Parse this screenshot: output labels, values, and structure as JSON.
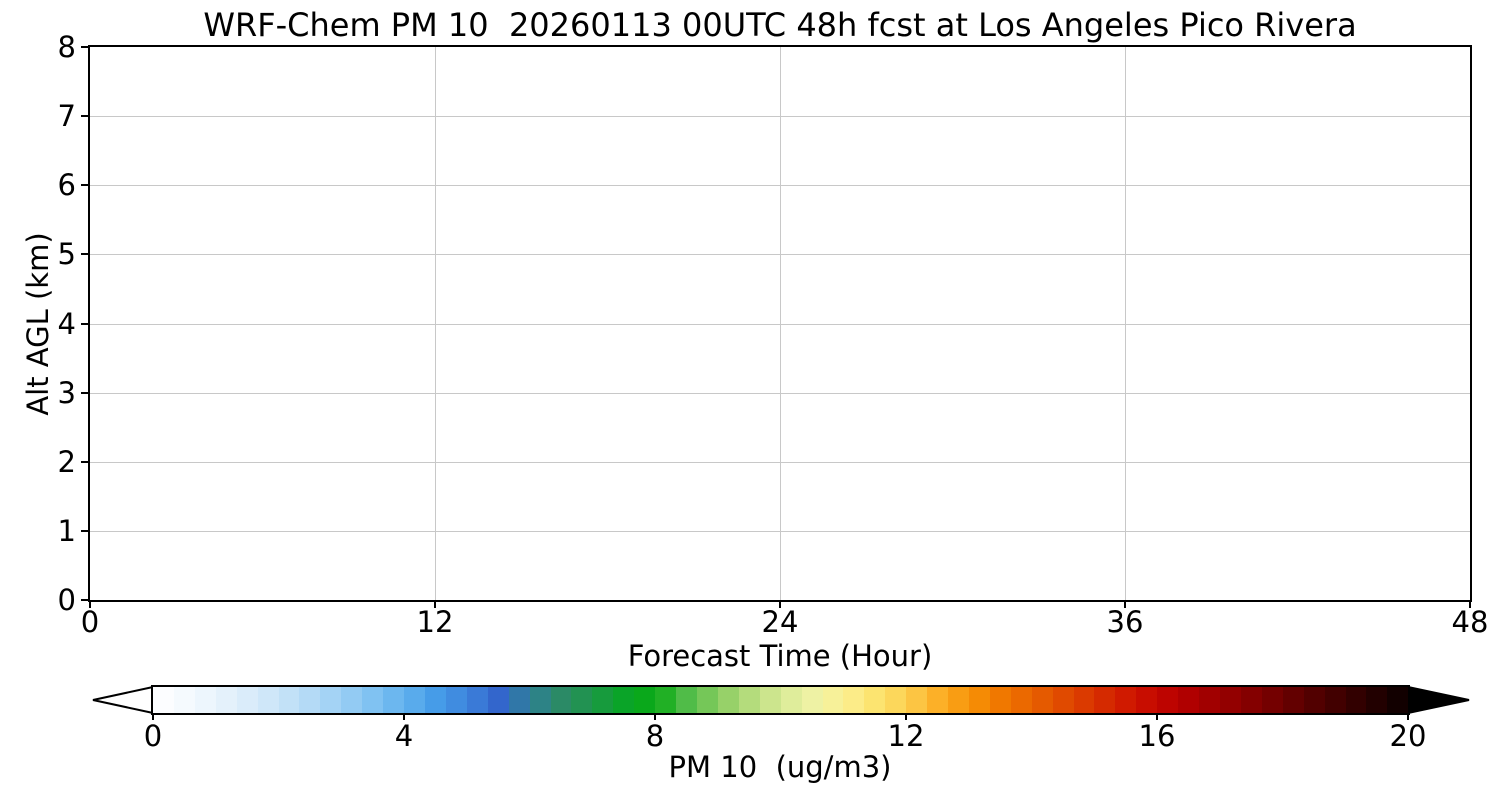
{
  "chart_data": {
    "type": "heatmap",
    "title": "WRF-Chem PM 10  20260113 00UTC 48h fcst at Los Angeles Pico Rivera",
    "xlabel": "Forecast Time (Hour)",
    "ylabel": "Alt AGL (km)",
    "xlim": [
      0,
      48
    ],
    "ylim": [
      0,
      8
    ],
    "x_ticks": [
      0,
      12,
      24,
      36,
      48
    ],
    "y_ticks": [
      0,
      1,
      2,
      3,
      4,
      5,
      6,
      7,
      8
    ],
    "grid": true,
    "grid_color": "#c8c8c8",
    "plot_background": "#ffffff",
    "spine_color": "#000000",
    "data_note": "Plot area is entirely blank/white: PM 10 concentration reads ~0 ug/m3 (white end of the colorbar) for all forecast hours 0-48 and altitudes 0-8 km AGL; no contour shading visible.",
    "colorbar": {
      "label": "PM 10  (ug/m3)",
      "ticks": [
        0,
        4,
        8,
        12,
        16,
        20
      ],
      "range": [
        0,
        20
      ],
      "extend": "both",
      "extend_under_color": "#ffffff",
      "extend_over_color": "#000000",
      "segments": 60,
      "stops": [
        [
          0,
          "#ffffff"
        ],
        [
          0.5,
          "#f5fafe"
        ],
        [
          1,
          "#e9f4fc"
        ],
        [
          1.5,
          "#daecfa"
        ],
        [
          2,
          "#c9e4f8"
        ],
        [
          2.5,
          "#b4daf6"
        ],
        [
          3,
          "#9cd0f4"
        ],
        [
          3.5,
          "#80c2f2"
        ],
        [
          4,
          "#62b2ee"
        ],
        [
          4.5,
          "#469ce8"
        ],
        [
          5,
          "#3d84dc"
        ],
        [
          5.5,
          "#3366cc"
        ],
        [
          6,
          "#2e8096"
        ],
        [
          6.5,
          "#2b8a66"
        ],
        [
          7,
          "#1e9648"
        ],
        [
          7.5,
          "#0aa428"
        ],
        [
          8,
          "#0aaa14"
        ],
        [
          8.5,
          "#50bc48"
        ],
        [
          9,
          "#88cc60"
        ],
        [
          9.5,
          "#b4dc7c"
        ],
        [
          10,
          "#d8ea96"
        ],
        [
          10.5,
          "#eef2a4"
        ],
        [
          11,
          "#fcf094"
        ],
        [
          11.5,
          "#fce470"
        ],
        [
          12,
          "#fcd050"
        ],
        [
          12.5,
          "#fcb028"
        ],
        [
          13,
          "#f89408"
        ],
        [
          13.5,
          "#f07800"
        ],
        [
          14,
          "#e86200"
        ],
        [
          14.5,
          "#e04a00"
        ],
        [
          15,
          "#d83200"
        ],
        [
          15.5,
          "#d01a00"
        ],
        [
          16,
          "#c40600"
        ],
        [
          16.5,
          "#b00000"
        ],
        [
          17,
          "#9a0000"
        ],
        [
          17.5,
          "#840000"
        ],
        [
          18,
          "#6c0000"
        ],
        [
          18.5,
          "#520000"
        ],
        [
          19,
          "#3a0000"
        ],
        [
          19.5,
          "#220000"
        ],
        [
          20,
          "#0a0000"
        ]
      ]
    }
  }
}
